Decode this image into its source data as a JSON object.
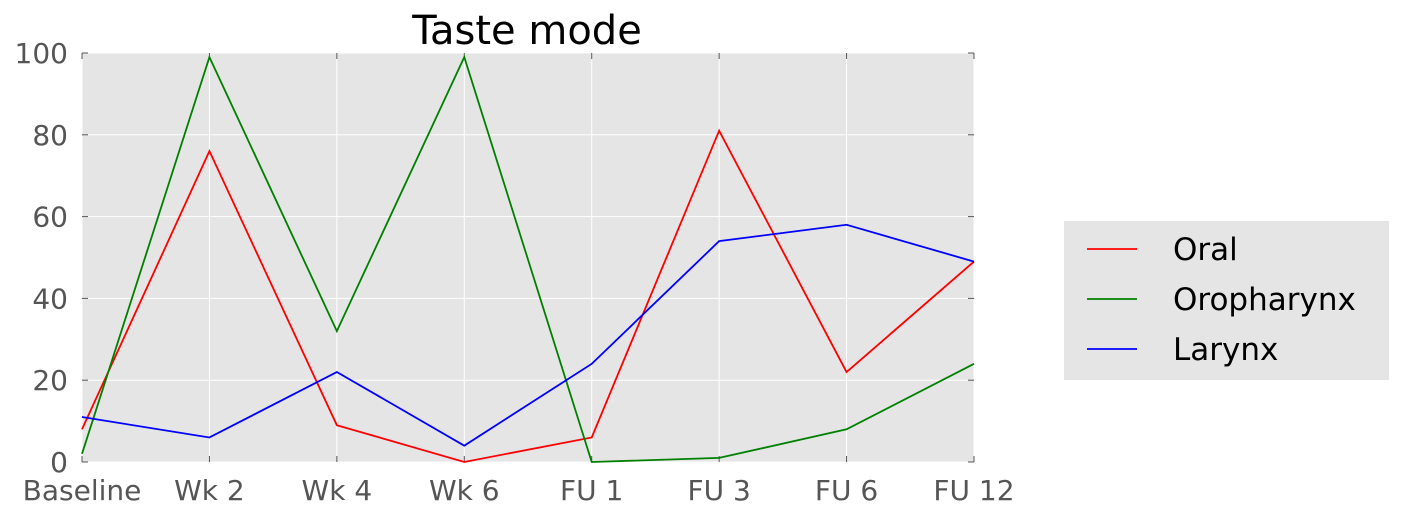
{
  "chart_data": {
    "type": "line",
    "title": "Taste  mode",
    "xlabel": "",
    "ylabel": "",
    "categories": [
      "Baseline",
      "Wk 2",
      "Wk 4",
      "Wk 6",
      "FU 1",
      "FU 3",
      "FU 6",
      "FU 12"
    ],
    "ylim": [
      0,
      100
    ],
    "yticks": [
      0,
      20,
      40,
      60,
      80,
      100
    ],
    "grid": true,
    "legend_position": "right",
    "background_color": "#e5e5e5",
    "series": [
      {
        "name": "Oral",
        "color": "#ff0000",
        "values": [
          8,
          76,
          9,
          0,
          6,
          81,
          22,
          49
        ]
      },
      {
        "name": "Oropharynx",
        "color": "#008000",
        "values": [
          2,
          99,
          32,
          99,
          0,
          1,
          8,
          24
        ]
      },
      {
        "name": "Larynx",
        "color": "#0000ff",
        "values": [
          11,
          6,
          22,
          4,
          24,
          54,
          58,
          49
        ]
      }
    ]
  }
}
